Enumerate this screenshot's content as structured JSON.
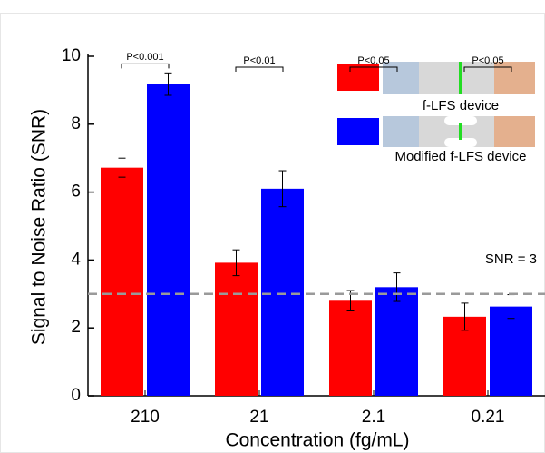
{
  "chart_data": {
    "type": "bar",
    "x_label": "Concentration (fg/mL)",
    "y_label": "Signal to Noise Ratio (SNR)",
    "categories": [
      "210",
      "21",
      "2.1",
      "0.21"
    ],
    "series": [
      {
        "name": "f-LFS device",
        "color": "#ff0000",
        "values": [
          6.72,
          3.92,
          2.8,
          2.33
        ],
        "errors": [
          0.28,
          0.38,
          0.3,
          0.4
        ]
      },
      {
        "name": "Modified f-LFS device",
        "color": "#0000ff",
        "values": [
          9.18,
          6.1,
          3.2,
          2.63
        ],
        "errors": [
          0.33,
          0.53,
          0.42,
          0.35
        ]
      }
    ],
    "p_values": [
      "P<0.001",
      "P<0.01",
      "P<0.05",
      "P<0.05"
    ],
    "threshold": 3,
    "threshold_label": "SNR = 3",
    "ylim": [
      0,
      10
    ],
    "yticks": [
      0,
      2,
      4,
      6,
      8,
      10
    ]
  }
}
